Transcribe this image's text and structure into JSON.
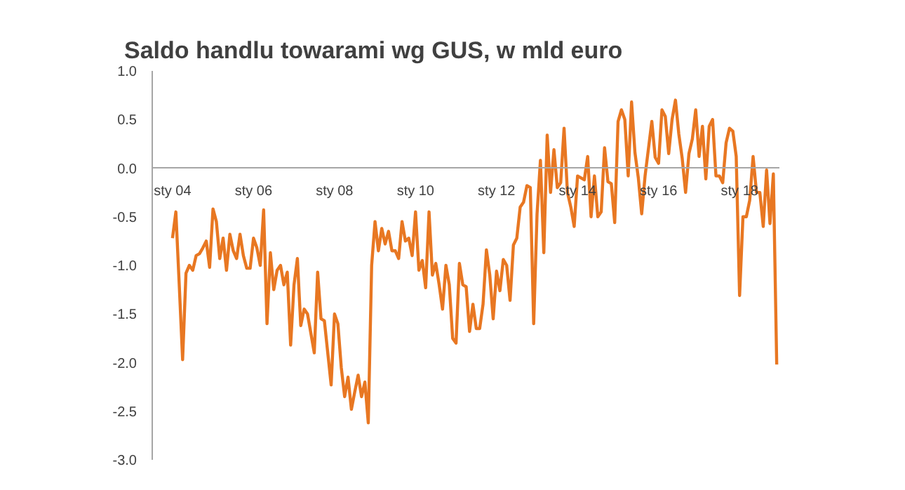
{
  "chart_data": {
    "type": "line",
    "title": "Saldo handlu towarami wg GUS, w mld euro",
    "categories": [
      "sty 04",
      null,
      null,
      null,
      null,
      null,
      null,
      null,
      null,
      null,
      null,
      null,
      null,
      null,
      null,
      null,
      null,
      null,
      null,
      null,
      null,
      null,
      null,
      null,
      "sty 06",
      null,
      null,
      null,
      null,
      null,
      null,
      null,
      null,
      null,
      null,
      null,
      null,
      null,
      null,
      null,
      null,
      null,
      null,
      null,
      null,
      null,
      null,
      null,
      "sty 08",
      null,
      null,
      null,
      null,
      null,
      null,
      null,
      null,
      null,
      null,
      null,
      null,
      null,
      null,
      null,
      null,
      null,
      null,
      null,
      null,
      null,
      null,
      null,
      "sty 10",
      null,
      null,
      null,
      null,
      null,
      null,
      null,
      null,
      null,
      null,
      null,
      null,
      null,
      null,
      null,
      null,
      null,
      null,
      null,
      null,
      null,
      null,
      null,
      "sty 12",
      null,
      null,
      null,
      null,
      null,
      null,
      null,
      null,
      null,
      null,
      null,
      null,
      null,
      null,
      null,
      null,
      null,
      null,
      null,
      null,
      null,
      null,
      null,
      "sty 14",
      null,
      null,
      null,
      null,
      null,
      null,
      null,
      null,
      null,
      null,
      null,
      null,
      null,
      null,
      null,
      null,
      null,
      null,
      null,
      null,
      null,
      null,
      null,
      "sty 16",
      null,
      null,
      null,
      null,
      null,
      null,
      null,
      null,
      null,
      null,
      null,
      null,
      null,
      null,
      null,
      null,
      null,
      null,
      null,
      null,
      null,
      null,
      null,
      "sty 18",
      null,
      null,
      null,
      null,
      null,
      null,
      null,
      null,
      null,
      null,
      null
    ],
    "series": [
      {
        "color": "#e87722",
        "values": [
          -0.72,
          -0.45,
          -1.2,
          -1.97,
          -1.08,
          -1.0,
          -1.05,
          -0.9,
          -0.88,
          -0.82,
          -0.75,
          -1.02,
          -0.42,
          -0.55,
          -0.93,
          -0.72,
          -1.05,
          -0.68,
          -0.85,
          -0.93,
          -0.68,
          -0.9,
          -1.03,
          -1.03,
          -0.72,
          -0.82,
          -1.0,
          -0.43,
          -1.6,
          -0.87,
          -1.25,
          -1.05,
          -1.0,
          -1.2,
          -1.07,
          -1.82,
          -1.2,
          -0.93,
          -1.62,
          -1.45,
          -1.5,
          -1.7,
          -1.9,
          -1.07,
          -1.55,
          -1.57,
          -1.9,
          -2.23,
          -1.5,
          -1.6,
          -2.05,
          -2.35,
          -2.15,
          -2.48,
          -2.3,
          -2.13,
          -2.35,
          -2.2,
          -2.62,
          -1.0,
          -0.55,
          -0.85,
          -0.62,
          -0.78,
          -0.65,
          -0.85,
          -0.85,
          -0.93,
          -0.55,
          -0.75,
          -0.72,
          -0.9,
          -0.45,
          -1.05,
          -0.95,
          -1.23,
          -0.45,
          -1.1,
          -0.98,
          -1.2,
          -1.45,
          -1.0,
          -1.2,
          -1.75,
          -1.8,
          -0.98,
          -1.2,
          -1.22,
          -1.68,
          -1.4,
          -1.65,
          -1.65,
          -1.4,
          -0.84,
          -1.1,
          -1.55,
          -1.06,
          -1.26,
          -0.94,
          -1.0,
          -1.36,
          -0.79,
          -0.72,
          -0.4,
          -0.35,
          -0.18,
          -0.2,
          -1.6,
          -0.47,
          0.08,
          -0.87,
          0.34,
          -0.25,
          0.19,
          -0.2,
          -0.15,
          0.41,
          -0.25,
          -0.4,
          -0.6,
          -0.08,
          -0.1,
          -0.12,
          0.12,
          -0.5,
          -0.08,
          -0.5,
          -0.45,
          0.21,
          -0.14,
          -0.16,
          -0.56,
          0.48,
          0.6,
          0.5,
          -0.08,
          0.68,
          0.16,
          -0.1,
          -0.47,
          -0.08,
          0.2,
          0.48,
          0.11,
          0.05,
          0.6,
          0.53,
          0.15,
          0.5,
          0.7,
          0.35,
          0.1,
          -0.25,
          0.15,
          0.3,
          0.6,
          0.12,
          0.43,
          -0.11,
          0.43,
          0.5,
          -0.08,
          -0.08,
          -0.15,
          0.26,
          0.41,
          0.38,
          0.12,
          -1.31,
          -0.5,
          -0.5,
          -0.33,
          0.12,
          -0.25,
          -0.25,
          -0.6,
          -0.02,
          -0.57,
          -0.06,
          -2.02
        ]
      }
    ],
    "ylim": [
      -3.0,
      1.0
    ],
    "yticks": [
      {
        "value": -3.0,
        "label": "-3.0"
      },
      {
        "value": -2.5,
        "label": "-2.5"
      },
      {
        "value": -2.0,
        "label": "-2.0"
      },
      {
        "value": -1.5,
        "label": "-1.5"
      },
      {
        "value": -1.0,
        "label": "-1.0"
      },
      {
        "value": -0.5,
        "label": "-0.5"
      },
      {
        "value": 0.0,
        "label": "0.0"
      },
      {
        "value": 0.5,
        "label": "0.5"
      },
      {
        "value": 1.0,
        "label": "1.0"
      }
    ],
    "grid": false
  }
}
